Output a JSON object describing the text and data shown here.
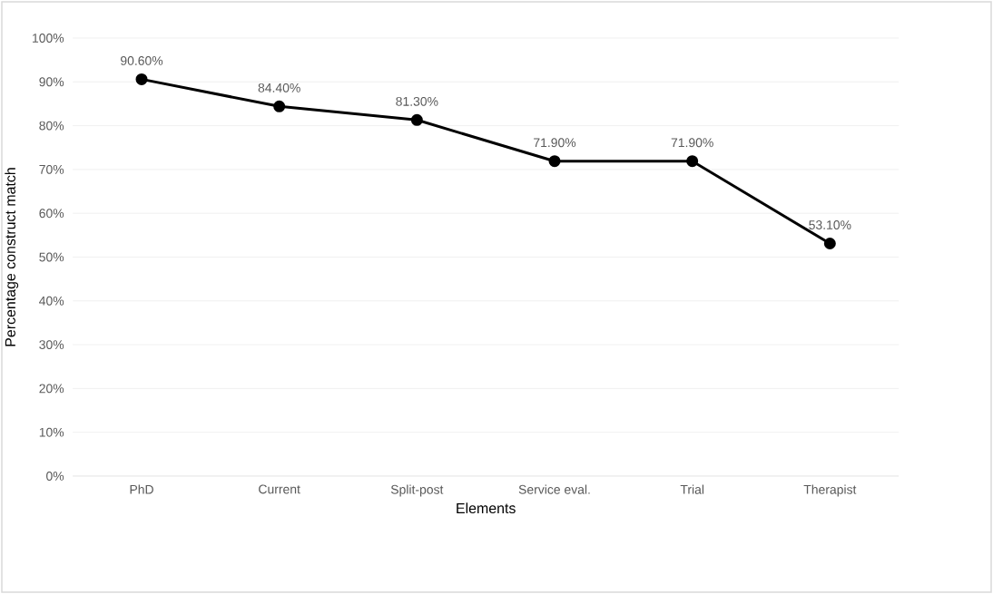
{
  "chart_data": {
    "type": "line",
    "xlabel": "Elements",
    "ylabel": "Percentage construct match",
    "categories": [
      "PhD",
      "Current",
      "Split-post",
      "Service eval.",
      "Trial",
      "Therapist"
    ],
    "series": [
      {
        "color": "#000000",
        "values": [
          90.6,
          84.4,
          81.3,
          71.9,
          71.9,
          53.1
        ],
        "value_labels": [
          "90.60%",
          "84.40%",
          "81.30%",
          "71.90%",
          "71.90%",
          "53.10%"
        ]
      }
    ],
    "ylim": [
      0,
      100
    ],
    "yticks": [
      {
        "value": 0,
        "label": "0%"
      },
      {
        "value": 10,
        "label": "10%"
      },
      {
        "value": 20,
        "label": "20%"
      },
      {
        "value": 30,
        "label": "30%"
      },
      {
        "value": 40,
        "label": "40%"
      },
      {
        "value": 50,
        "label": "50%"
      },
      {
        "value": 60,
        "label": "60%"
      },
      {
        "value": 70,
        "label": "70%"
      },
      {
        "value": 80,
        "label": "80%"
      },
      {
        "value": 90,
        "label": "90%"
      },
      {
        "value": 100,
        "label": "100%"
      }
    ],
    "grid": "y",
    "marker": "circle",
    "line_style": "solid"
  }
}
